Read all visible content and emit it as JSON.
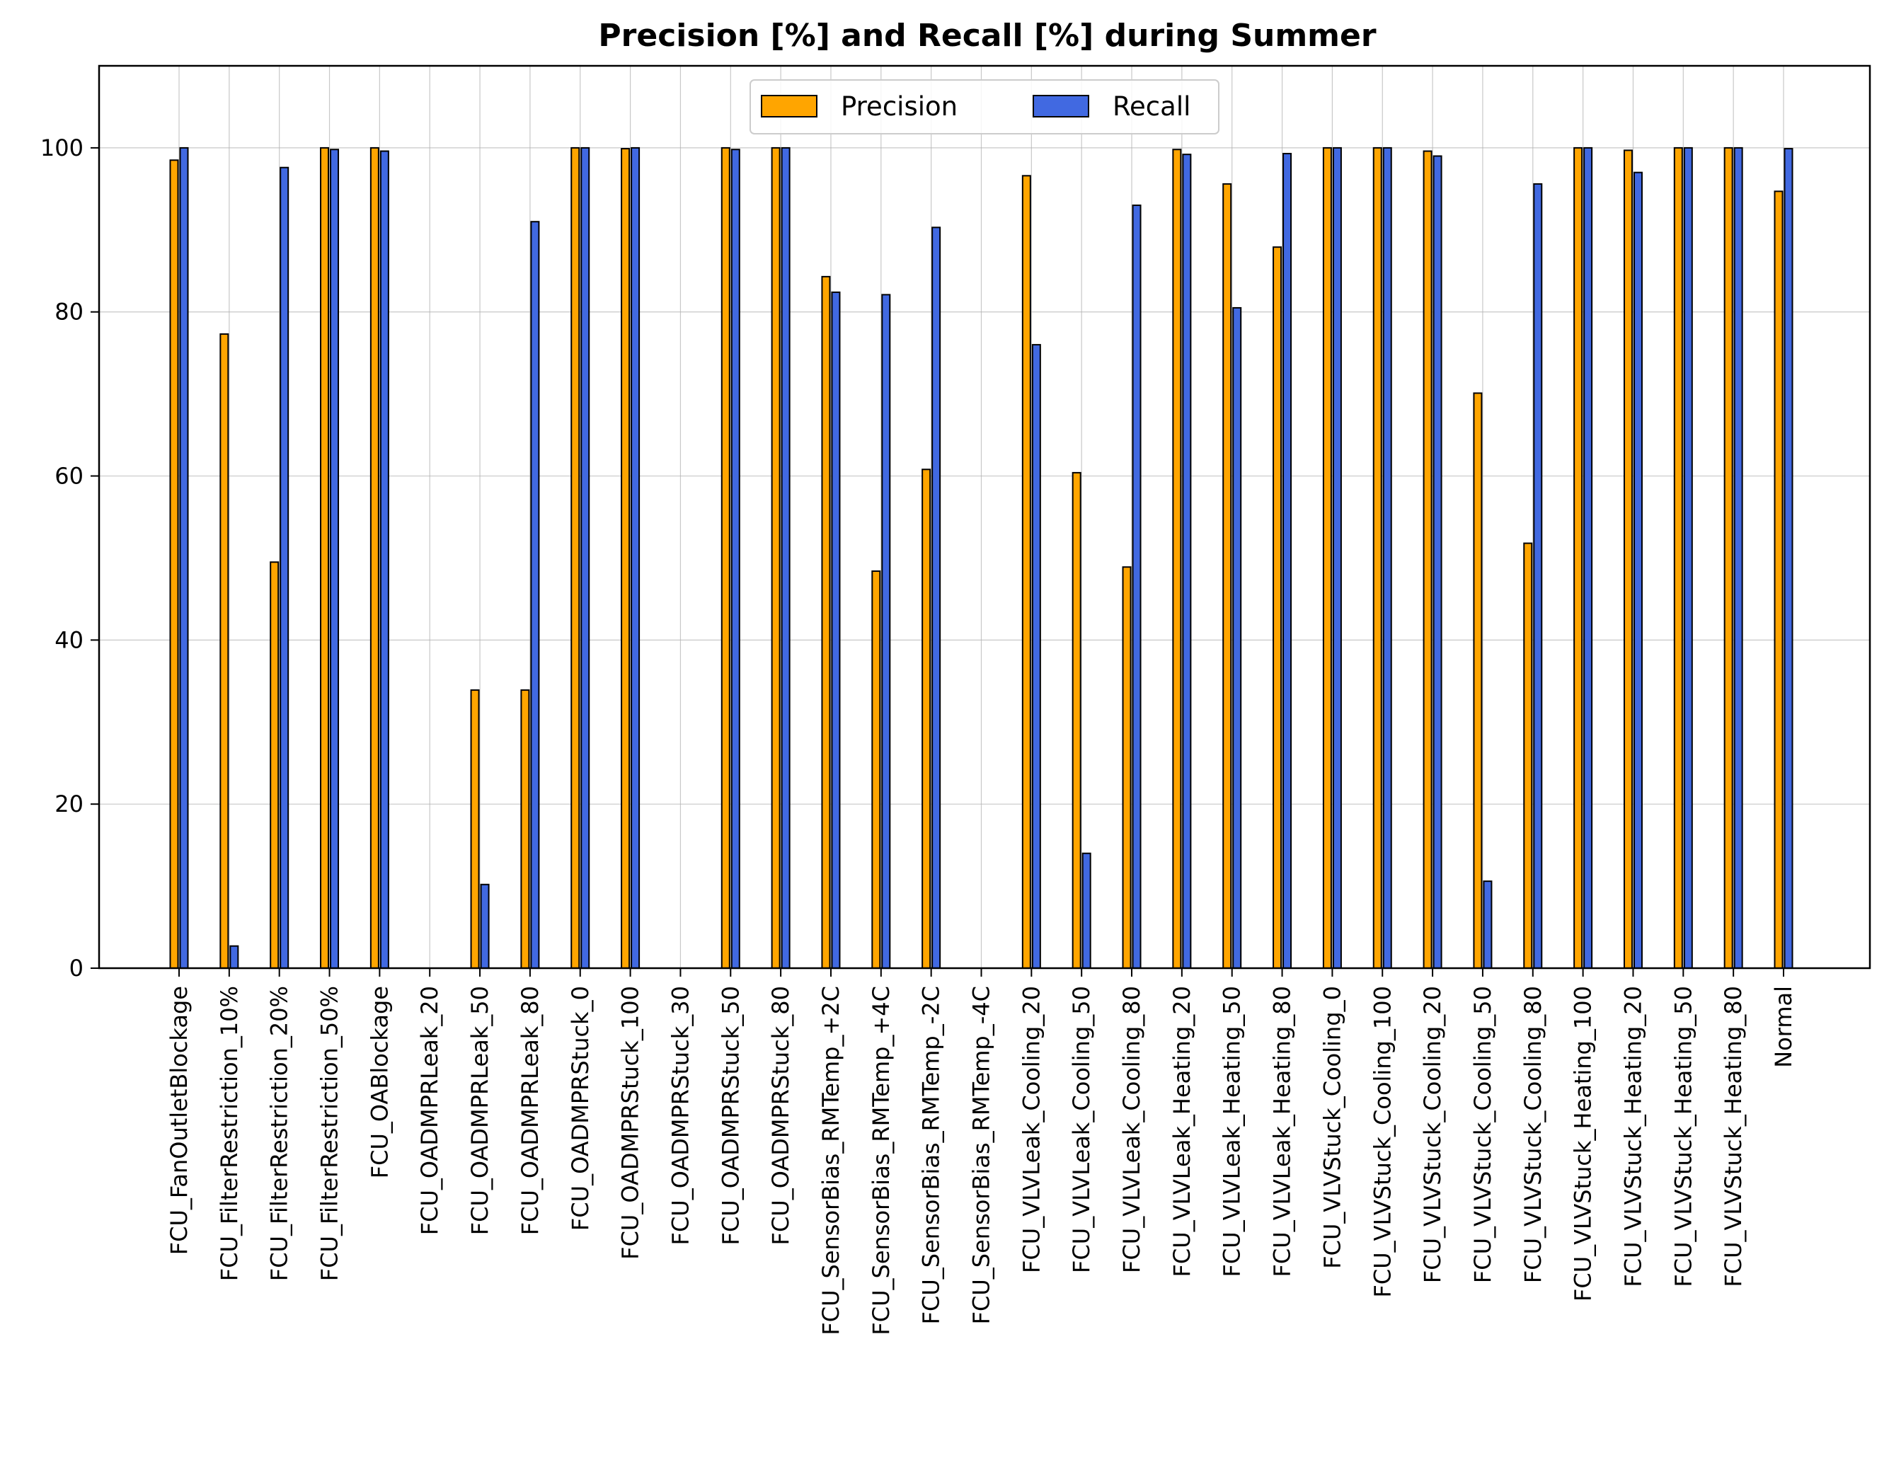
{
  "chart_data": {
    "type": "bar",
    "title": "Precision [%] and Recall [%] during Summer",
    "xlabel": "",
    "ylabel": "",
    "ylim": [
      0,
      110
    ],
    "yticks": [
      0,
      20,
      40,
      60,
      80,
      100
    ],
    "grid": true,
    "legend_position": "top-center",
    "categories": [
      "FCU_FanOutletBlockage",
      "FCU_FilterRestriction_10%",
      "FCU_FilterRestriction_20%",
      "FCU_FilterRestriction_50%",
      "FCU_OABlockage",
      "FCU_OADMPRLeak_20",
      "FCU_OADMPRLeak_50",
      "FCU_OADMPRLeak_80",
      "FCU_OADMPRStuck_0",
      "FCU_OADMPRStuck_100",
      "FCU_OADMPRStuck_30",
      "FCU_OADMPRStuck_50",
      "FCU_OADMPRStuck_80",
      "FCU_SensorBias_RMTemp_+2C",
      "FCU_SensorBias_RMTemp_+4C",
      "FCU_SensorBias_RMTemp_-2C",
      "FCU_SensorBias_RMTemp_-4C",
      "FCU_VLVLeak_Cooling_20",
      "FCU_VLVLeak_Cooling_50",
      "FCU_VLVLeak_Cooling_80",
      "FCU_VLVLeak_Heating_20",
      "FCU_VLVLeak_Heating_50",
      "FCU_VLVLeak_Heating_80",
      "FCU_VLVStuck_Cooling_0",
      "FCU_VLVStuck_Cooling_100",
      "FCU_VLVStuck_Cooling_20",
      "FCU_VLVStuck_Cooling_50",
      "FCU_VLVStuck_Cooling_80",
      "FCU_VLVStuck_Heating_100",
      "FCU_VLVStuck_Heating_20",
      "FCU_VLVStuck_Heating_50",
      "FCU_VLVStuck_Heating_80",
      "Normal"
    ],
    "series": [
      {
        "name": "Precision",
        "color": "#ffa500",
        "values": [
          98.5,
          77.3,
          49.5,
          100,
          100,
          0,
          33.9,
          33.9,
          100,
          99.9,
          0,
          100,
          100,
          84.3,
          48.4,
          60.8,
          0,
          96.6,
          60.4,
          48.9,
          99.8,
          95.6,
          87.9,
          100,
          100,
          99.6,
          70.1,
          51.8,
          100,
          99.7,
          100,
          100,
          94.7
        ]
      },
      {
        "name": "Recall",
        "color": "#4169e1",
        "values": [
          100,
          2.7,
          97.6,
          99.8,
          99.6,
          0,
          10.2,
          91,
          100,
          100,
          0,
          99.8,
          100,
          82.4,
          82.1,
          90.3,
          0,
          76,
          14,
          93,
          99.2,
          80.5,
          99.3,
          100,
          100,
          99,
          10.6,
          95.6,
          100,
          97,
          100,
          100,
          99.9
        ]
      }
    ]
  }
}
